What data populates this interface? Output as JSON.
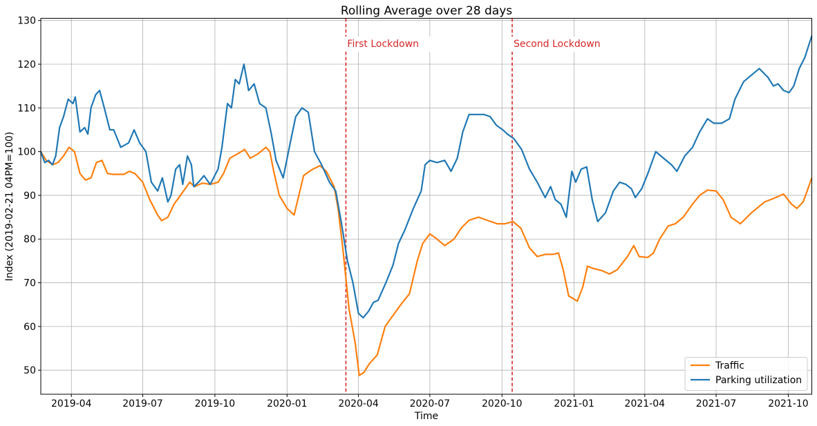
{
  "chart_data": {
    "type": "line",
    "title": "Rolling Average over 28 days",
    "xlabel": "Time",
    "ylabel": "Index (2019-02-21 04PM=100)",
    "xlim": [
      "2019-02-21",
      "2021-10-31"
    ],
    "ylim": [
      44.5,
      130.5
    ],
    "x_ticks": [
      "2019-04",
      "2019-07",
      "2019-10",
      "2020-01",
      "2020-04",
      "2020-07",
      "2020-10",
      "2021-01",
      "2021-04",
      "2021-07",
      "2021-10"
    ],
    "y_ticks": [
      50,
      60,
      70,
      80,
      90,
      100,
      110,
      120,
      130
    ],
    "grid": true,
    "legend_position": "lower-right",
    "annotations": [
      {
        "x": "2020-03-16",
        "label": "First Lockdown",
        "color": "#d62728"
      },
      {
        "x": "2020-10-14",
        "label": "Second Lockdown",
        "color": "#d62728"
      }
    ],
    "series": [
      {
        "name": "Traffic",
        "color": "#ff7f0e",
        "points": [
          [
            "2019-02-21",
            100
          ],
          [
            "2019-02-28",
            98
          ],
          [
            "2019-03-08",
            97
          ],
          [
            "2019-03-15",
            97.5
          ],
          [
            "2019-03-22",
            99
          ],
          [
            "2019-03-29",
            101
          ],
          [
            "2019-04-05",
            100
          ],
          [
            "2019-04-12",
            95
          ],
          [
            "2019-04-19",
            93.5
          ],
          [
            "2019-04-26",
            94
          ],
          [
            "2019-05-03",
            97.5
          ],
          [
            "2019-05-10",
            98
          ],
          [
            "2019-05-17",
            95
          ],
          [
            "2019-05-24",
            94.8
          ],
          [
            "2019-06-07",
            94.8
          ],
          [
            "2019-06-14",
            95.5
          ],
          [
            "2019-06-21",
            95
          ],
          [
            "2019-07-01",
            93
          ],
          [
            "2019-07-10",
            89
          ],
          [
            "2019-07-20",
            85.5
          ],
          [
            "2019-07-25",
            84.2
          ],
          [
            "2019-08-02",
            85
          ],
          [
            "2019-08-10",
            88
          ],
          [
            "2019-08-20",
            90.5
          ],
          [
            "2019-08-30",
            93
          ],
          [
            "2019-09-05",
            92
          ],
          [
            "2019-09-15",
            92.8
          ],
          [
            "2019-09-25",
            92.5
          ],
          [
            "2019-10-05",
            93
          ],
          [
            "2019-10-12",
            95
          ],
          [
            "2019-10-20",
            98.5
          ],
          [
            "2019-10-30",
            99.5
          ],
          [
            "2019-11-08",
            100.5
          ],
          [
            "2019-11-15",
            98.5
          ],
          [
            "2019-11-25",
            99.5
          ],
          [
            "2019-12-05",
            101
          ],
          [
            "2019-12-10",
            100
          ],
          [
            "2019-12-15",
            95.5
          ],
          [
            "2019-12-22",
            90
          ],
          [
            "2020-01-01",
            87
          ],
          [
            "2020-01-10",
            85.5
          ],
          [
            "2020-01-14",
            88.5
          ],
          [
            "2020-01-22",
            94.5
          ],
          [
            "2020-02-01",
            95.8
          ],
          [
            "2020-02-12",
            96.8
          ],
          [
            "2020-02-20",
            95.5
          ],
          [
            "2020-03-01",
            92
          ],
          [
            "2020-03-06",
            87
          ],
          [
            "2020-03-12",
            78
          ],
          [
            "2020-03-20",
            64
          ],
          [
            "2020-03-28",
            56
          ],
          [
            "2020-04-02",
            48.8
          ],
          [
            "2020-04-08",
            49.5
          ],
          [
            "2020-04-15",
            51.5
          ],
          [
            "2020-04-25",
            53.5
          ],
          [
            "2020-05-05",
            60
          ],
          [
            "2020-05-15",
            62.5
          ],
          [
            "2020-05-25",
            65
          ],
          [
            "2020-06-05",
            67.5
          ],
          [
            "2020-06-15",
            75
          ],
          [
            "2020-06-22",
            79
          ],
          [
            "2020-07-01",
            81.2
          ],
          [
            "2020-07-10",
            80
          ],
          [
            "2020-07-20",
            78.5
          ],
          [
            "2020-08-01",
            80
          ],
          [
            "2020-08-10",
            82.5
          ],
          [
            "2020-08-20",
            84.3
          ],
          [
            "2020-09-01",
            85
          ],
          [
            "2020-09-12",
            84.3
          ],
          [
            "2020-09-25",
            83.5
          ],
          [
            "2020-10-05",
            83.5
          ],
          [
            "2020-10-15",
            84
          ],
          [
            "2020-10-25",
            82.5
          ],
          [
            "2020-11-05",
            78
          ],
          [
            "2020-11-15",
            76
          ],
          [
            "2020-11-25",
            76.5
          ],
          [
            "2020-12-05",
            76.5
          ],
          [
            "2020-12-12",
            76.8
          ],
          [
            "2020-12-18",
            73
          ],
          [
            "2020-12-25",
            67
          ],
          [
            "2021-01-05",
            65.8
          ],
          [
            "2021-01-12",
            69
          ],
          [
            "2021-01-18",
            73.8
          ],
          [
            "2021-01-25",
            73.3
          ],
          [
            "2021-02-05",
            72.8
          ],
          [
            "2021-02-15",
            72
          ],
          [
            "2021-02-25",
            73
          ],
          [
            "2021-03-10",
            76
          ],
          [
            "2021-03-18",
            78.5
          ],
          [
            "2021-03-25",
            76
          ],
          [
            "2021-04-05",
            75.8
          ],
          [
            "2021-04-12",
            76.8
          ],
          [
            "2021-04-20",
            80
          ],
          [
            "2021-05-01",
            83
          ],
          [
            "2021-05-10",
            83.5
          ],
          [
            "2021-05-20",
            85
          ],
          [
            "2021-06-01",
            88
          ],
          [
            "2021-06-10",
            90
          ],
          [
            "2021-06-20",
            91.2
          ],
          [
            "2021-07-01",
            91
          ],
          [
            "2021-07-10",
            89
          ],
          [
            "2021-07-20",
            85
          ],
          [
            "2021-08-01",
            83.5
          ],
          [
            "2021-08-15",
            86
          ],
          [
            "2021-09-01",
            88.5
          ],
          [
            "2021-09-15",
            89.5
          ],
          [
            "2021-09-25",
            90.3
          ],
          [
            "2021-10-05",
            88
          ],
          [
            "2021-10-12",
            87
          ],
          [
            "2021-10-20",
            88.5
          ],
          [
            "2021-10-25",
            91
          ],
          [
            "2021-10-31",
            94
          ]
        ]
      },
      {
        "name": "Parking utilization",
        "color": "#1f77b4",
        "points": [
          [
            "2019-02-21",
            100
          ],
          [
            "2019-02-26",
            97.5
          ],
          [
            "2019-03-03",
            98
          ],
          [
            "2019-03-08",
            97
          ],
          [
            "2019-03-12",
            99
          ],
          [
            "2019-03-17",
            105.5
          ],
          [
            "2019-03-22",
            108
          ],
          [
            "2019-03-28",
            112
          ],
          [
            "2019-04-03",
            111
          ],
          [
            "2019-04-06",
            112.5
          ],
          [
            "2019-04-12",
            104.5
          ],
          [
            "2019-04-18",
            105.5
          ],
          [
            "2019-04-22",
            104
          ],
          [
            "2019-04-26",
            110
          ],
          [
            "2019-05-02",
            113
          ],
          [
            "2019-05-07",
            114
          ],
          [
            "2019-05-13",
            110
          ],
          [
            "2019-05-20",
            105
          ],
          [
            "2019-05-25",
            105
          ],
          [
            "2019-06-03",
            101
          ],
          [
            "2019-06-13",
            102
          ],
          [
            "2019-06-20",
            105
          ],
          [
            "2019-06-27",
            102
          ],
          [
            "2019-07-05",
            100
          ],
          [
            "2019-07-12",
            93
          ],
          [
            "2019-07-20",
            91
          ],
          [
            "2019-07-26",
            94
          ],
          [
            "2019-08-02",
            88.5
          ],
          [
            "2019-08-06",
            90
          ],
          [
            "2019-08-12",
            96
          ],
          [
            "2019-08-17",
            97
          ],
          [
            "2019-08-21",
            92.5
          ],
          [
            "2019-08-27",
            99
          ],
          [
            "2019-09-01",
            97
          ],
          [
            "2019-09-04",
            92
          ],
          [
            "2019-09-10",
            93
          ],
          [
            "2019-09-17",
            94.5
          ],
          [
            "2019-09-25",
            92.5
          ],
          [
            "2019-10-05",
            96
          ],
          [
            "2019-10-10",
            101
          ],
          [
            "2019-10-17",
            111
          ],
          [
            "2019-10-22",
            110
          ],
          [
            "2019-10-27",
            116.5
          ],
          [
            "2019-11-01",
            115.5
          ],
          [
            "2019-11-07",
            120
          ],
          [
            "2019-11-13",
            114
          ],
          [
            "2019-11-20",
            115.5
          ],
          [
            "2019-11-27",
            111
          ],
          [
            "2019-12-05",
            110
          ],
          [
            "2019-12-12",
            104
          ],
          [
            "2019-12-18",
            98
          ],
          [
            "2019-12-27",
            94
          ],
          [
            "2020-01-05",
            102
          ],
          [
            "2020-01-12",
            108
          ],
          [
            "2020-01-20",
            110
          ],
          [
            "2020-01-28",
            109
          ],
          [
            "2020-02-05",
            100
          ],
          [
            "2020-02-14",
            97
          ],
          [
            "2020-02-24",
            93
          ],
          [
            "2020-03-03",
            91
          ],
          [
            "2020-03-10",
            84
          ],
          [
            "2020-03-18",
            75
          ],
          [
            "2020-03-25",
            70
          ],
          [
            "2020-04-01",
            63
          ],
          [
            "2020-04-07",
            62
          ],
          [
            "2020-04-14",
            63.5
          ],
          [
            "2020-04-20",
            65.5
          ],
          [
            "2020-04-26",
            66
          ],
          [
            "2020-05-06",
            70
          ],
          [
            "2020-05-15",
            74
          ],
          [
            "2020-05-22",
            79
          ],
          [
            "2020-05-30",
            82
          ],
          [
            "2020-06-10",
            87
          ],
          [
            "2020-06-20",
            91
          ],
          [
            "2020-06-25",
            97
          ],
          [
            "2020-07-01",
            98
          ],
          [
            "2020-07-10",
            97.5
          ],
          [
            "2020-07-20",
            98
          ],
          [
            "2020-07-28",
            95.5
          ],
          [
            "2020-08-05",
            98.5
          ],
          [
            "2020-08-12",
            104.5
          ],
          [
            "2020-08-20",
            108.5
          ],
          [
            "2020-08-30",
            108.5
          ],
          [
            "2020-09-08",
            108.5
          ],
          [
            "2020-09-16",
            108
          ],
          [
            "2020-09-24",
            106
          ],
          [
            "2020-10-02",
            105
          ],
          [
            "2020-10-08",
            104
          ],
          [
            "2020-10-16",
            103
          ],
          [
            "2020-10-26",
            100.5
          ],
          [
            "2020-11-05",
            96
          ],
          [
            "2020-11-15",
            93
          ],
          [
            "2020-11-25",
            89.5
          ],
          [
            "2020-12-02",
            92
          ],
          [
            "2020-12-08",
            89
          ],
          [
            "2020-12-15",
            88
          ],
          [
            "2020-12-22",
            85
          ],
          [
            "2020-12-29",
            95.5
          ],
          [
            "2021-01-03",
            93
          ],
          [
            "2021-01-10",
            96
          ],
          [
            "2021-01-17",
            96.5
          ],
          [
            "2021-01-24",
            89
          ],
          [
            "2021-01-31",
            84
          ],
          [
            "2021-02-10",
            86
          ],
          [
            "2021-02-20",
            91
          ],
          [
            "2021-02-28",
            93
          ],
          [
            "2021-03-08",
            92.5
          ],
          [
            "2021-03-15",
            91.5
          ],
          [
            "2021-03-20",
            89.5
          ],
          [
            "2021-03-28",
            91.5
          ],
          [
            "2021-04-05",
            95
          ],
          [
            "2021-04-15",
            100
          ],
          [
            "2021-04-25",
            98.5
          ],
          [
            "2021-05-05",
            97
          ],
          [
            "2021-05-12",
            95.5
          ],
          [
            "2021-05-22",
            99
          ],
          [
            "2021-06-01",
            101
          ],
          [
            "2021-06-10",
            104.5
          ],
          [
            "2021-06-20",
            107.5
          ],
          [
            "2021-06-28",
            106.5
          ],
          [
            "2021-07-08",
            106.5
          ],
          [
            "2021-07-18",
            107.5
          ],
          [
            "2021-07-25",
            112
          ],
          [
            "2021-08-05",
            116
          ],
          [
            "2021-08-15",
            117.5
          ],
          [
            "2021-08-25",
            119
          ],
          [
            "2021-09-05",
            117
          ],
          [
            "2021-09-12",
            115
          ],
          [
            "2021-09-18",
            115.5
          ],
          [
            "2021-09-25",
            114
          ],
          [
            "2021-10-02",
            113.5
          ],
          [
            "2021-10-08",
            115
          ],
          [
            "2021-10-15",
            119
          ],
          [
            "2021-10-22",
            121.5
          ],
          [
            "2021-10-31",
            126.5
          ]
        ]
      }
    ]
  }
}
